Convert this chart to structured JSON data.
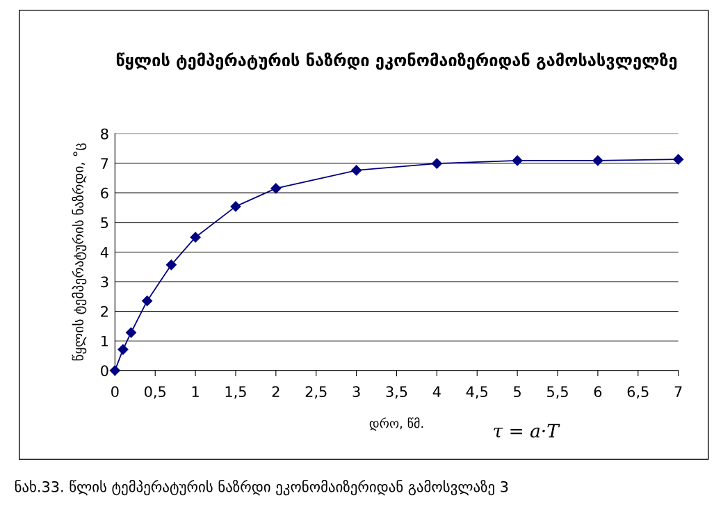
{
  "chart_data": {
    "type": "line",
    "title": "წყლის ტემპერატურის ნაზრდი ეკონომაიზერიდან გამოსასვლელზე",
    "xlabel": "დრო, წმ.",
    "ylabel": "წყლის ტემპერატურის ნაზრდი, °ც",
    "annotations": [
      "τ = a·T",
      "ნახ.33. წლის ტემპერატურის ნაზრდი ეკონომაიზერიდან გამოსვლაზე 3"
    ],
    "x": [
      0,
      0.1,
      0.2,
      0.4,
      0.7,
      1,
      1.5,
      2,
      3,
      4,
      5,
      6,
      7
    ],
    "series": [
      {
        "color": "#000080",
        "values": [
          0,
          0.71,
          1.28,
          2.35,
          3.57,
          4.5,
          5.54,
          6.15,
          6.76,
          6.99,
          7.09,
          7.09,
          7.13
        ]
      }
    ],
    "xlim": [
      0,
      7
    ],
    "xticks": [
      0,
      {
        "value": 0.5,
        "label": "0,5"
      },
      1,
      {
        "value": 1.5,
        "label": "1,5"
      },
      2,
      {
        "value": 2.5,
        "label": "2,5"
      },
      3,
      {
        "value": 3.5,
        "label": "3,5"
      },
      4,
      {
        "value": 4.5,
        "label": "4,5"
      },
      5,
      {
        "value": 5.5,
        "label": "5,5"
      },
      6,
      {
        "value": 6.5,
        "label": "6,5"
      },
      7
    ],
    "ylim": [
      0,
      8
    ],
    "yticks": [
      0,
      1,
      2,
      3,
      4,
      5,
      6,
      7,
      8
    ],
    "grid": "y",
    "marker": "diamond",
    "line_style": "solid"
  }
}
